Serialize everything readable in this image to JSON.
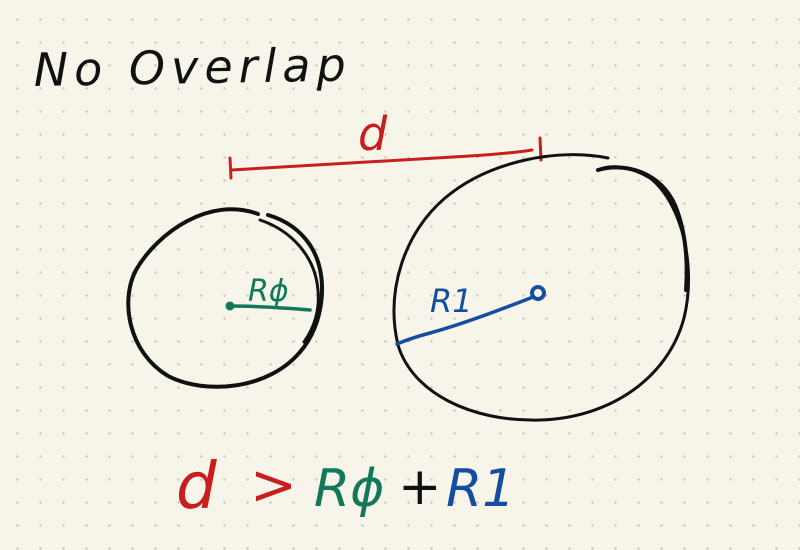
{
  "title": "No Overlap",
  "distance_label": "d",
  "radius_0_label": "Rϕ",
  "radius_1_label": "R1",
  "formula": {
    "lhs": "d",
    "operator": ">",
    "term_1": "Rϕ",
    "plus": "+",
    "term_2": "R1"
  },
  "colors": {
    "ink": "#111111",
    "red": "#c81e1e",
    "green": "#12785a",
    "blue": "#154ea0",
    "paper": "#f7f5ea"
  }
}
